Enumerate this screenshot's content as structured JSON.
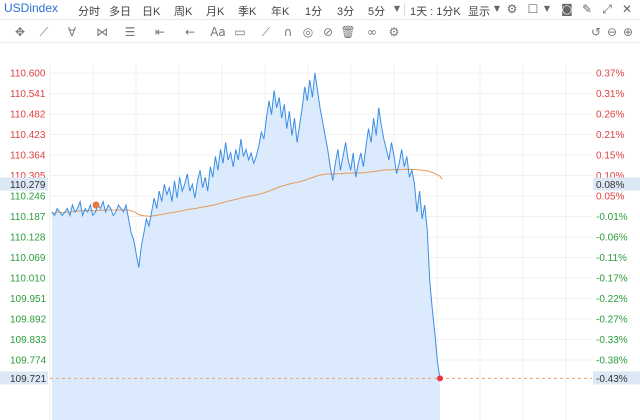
{
  "symbol": "USDindex",
  "timeframes": [
    {
      "label": "分时",
      "active": true
    },
    {
      "label": "多日",
      "active": false
    },
    {
      "label": "日K",
      "active": false
    },
    {
      "label": "周K",
      "active": false
    },
    {
      "label": "月K",
      "active": false
    },
    {
      "label": "季K",
      "active": false
    },
    {
      "label": "年K",
      "active": false
    },
    {
      "label": "1分",
      "active": false
    },
    {
      "label": "3分",
      "active": false
    },
    {
      "label": "5分",
      "active": false
    }
  ],
  "range_label": "1天 : 1分K",
  "display_label": "显示",
  "toolbar_icons": [
    "dropdown-icon",
    "gear-icon",
    "checkbox-icon",
    "camera-icon",
    "pencil-icon",
    "fullscreen-icon",
    "close-icon"
  ],
  "draw_tools": [
    "crosshair-icon",
    "line-tool-icon",
    "channel-tool-icon",
    "pattern-tool-icon",
    "fib-tool-icon",
    "measure-tool-icon",
    "arrow-tool-icon",
    "text-tool-icon",
    "comment-tool-icon",
    "eraser-icon",
    "magnet-icon",
    "hide-drawings-icon",
    "lock-icon",
    "delete-icon",
    "visibility-icon",
    "draw-settings-icon"
  ],
  "chart_data": {
    "type": "line",
    "y_labels_left": [
      "110.600",
      "110.541",
      "110.482",
      "110.423",
      "110.364",
      "110.305",
      "110.246",
      "110.187",
      "110.128",
      "110.069",
      "110.010",
      "109.951",
      "109.892",
      "109.833",
      "109.774"
    ],
    "y_labels_right": [
      "0.37%",
      "0.31%",
      "0.26%",
      "0.21%",
      "0.15%",
      "0.10%",
      "0.05%",
      "-0.01%",
      "-0.06%",
      "-0.11%",
      "-0.17%",
      "-0.22%",
      "-0.27%",
      "-0.33%",
      "-0.38%"
    ],
    "ylim": [
      109.72,
      110.65
    ],
    "prev_close": 110.279,
    "prev_close_pct": "0.08%",
    "current_label": "109.721",
    "current_pct": "-0.43%",
    "current_value": 109.721,
    "open_value": 110.22,
    "colors": {
      "price_line": "#3b8ee6",
      "avg_line": "#e69a5a",
      "area_fill": "#dbeafc",
      "up": "#e04040",
      "down": "#2a9d3a",
      "current_marker": "#e63a3a",
      "open_marker": "#e67a3a"
    },
    "price": [
      110.2,
      110.19,
      110.21,
      110.2,
      110.19,
      110.2,
      110.21,
      110.19,
      110.22,
      110.2,
      110.21,
      110.23,
      110.19,
      110.21,
      110.2,
      110.22,
      110.19,
      110.2,
      110.22,
      110.21,
      110.23,
      110.2,
      110.22,
      110.21,
      110.19,
      110.2,
      110.22,
      110.21,
      110.2,
      110.22,
      110.18,
      110.14,
      110.12,
      110.08,
      110.04,
      110.1,
      110.14,
      110.18,
      110.16,
      110.2,
      110.24,
      110.21,
      110.26,
      110.23,
      110.28,
      110.25,
      110.27,
      110.23,
      110.29,
      110.24,
      110.3,
      110.26,
      110.28,
      110.31,
      110.26,
      110.28,
      110.24,
      110.29,
      110.32,
      110.27,
      110.3,
      110.26,
      110.33,
      110.3,
      110.36,
      110.32,
      110.38,
      110.34,
      110.4,
      110.35,
      110.37,
      110.33,
      110.38,
      110.35,
      110.41,
      110.36,
      110.38,
      110.35,
      110.37,
      110.34,
      110.36,
      110.39,
      110.43,
      110.41,
      110.47,
      110.52,
      110.48,
      110.55,
      110.5,
      110.53,
      110.47,
      110.51,
      110.44,
      110.49,
      110.42,
      110.47,
      110.4,
      110.45,
      110.5,
      110.56,
      110.52,
      110.58,
      110.53,
      110.6,
      110.55,
      110.5,
      110.46,
      110.42,
      110.38,
      110.33,
      110.29,
      110.34,
      110.38,
      110.32,
      110.36,
      110.4,
      110.35,
      110.32,
      110.37,
      110.3,
      110.34,
      110.37,
      110.33,
      110.39,
      110.44,
      110.4,
      110.47,
      110.42,
      110.5,
      110.45,
      110.41,
      110.38,
      110.35,
      110.4,
      110.36,
      110.31,
      110.34,
      110.38,
      110.33,
      110.36,
      110.3,
      110.32,
      110.28,
      110.2,
      110.26,
      110.18,
      110.22,
      110.15,
      110.0,
      109.92,
      109.85,
      109.77,
      109.72
    ]
  }
}
